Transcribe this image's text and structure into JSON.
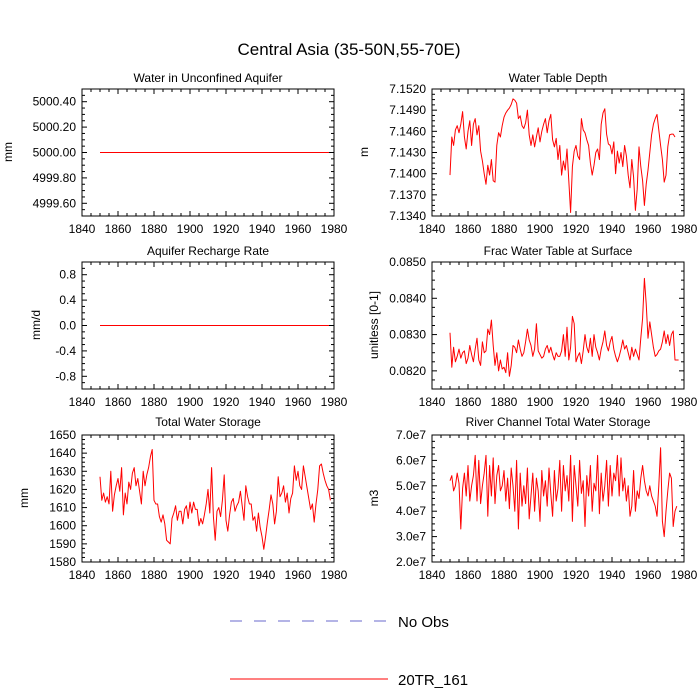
{
  "figure": {
    "title": "Central Asia (35-50N,55-70E)"
  },
  "legend": {
    "items": [
      {
        "label": "No Obs",
        "color": "#6a6acd",
        "style": "dashed"
      },
      {
        "label": "20TR_161",
        "color": "#ff0000",
        "style": "solid"
      }
    ]
  },
  "chart_data": [
    {
      "type": "line",
      "title": "Water in Unconfined Aquifer",
      "ylabel": "mm",
      "xlim": [
        1840,
        1980
      ],
      "xticks": [
        1840,
        1860,
        1880,
        1900,
        1920,
        1940,
        1960,
        1980
      ],
      "ylim": [
        4999.5,
        5000.5
      ],
      "yticks": [
        4999.6,
        4999.8,
        5000.0,
        5000.2,
        5000.4
      ],
      "ytick_labels": [
        "4999.60",
        "4999.80",
        "5000.00",
        "5000.20",
        "5000.40"
      ],
      "series": [
        {
          "name": "20TR_161",
          "color": "#ff0000",
          "x_start": 1850,
          "x_step": 1,
          "values": [
            5000.0,
            5000.0,
            5000.0,
            5000.0,
            5000.0,
            5000.0,
            5000.0,
            5000.0,
            5000.0,
            5000.0,
            5000.0,
            5000.0,
            5000.0,
            5000.0,
            5000.0,
            5000.0,
            5000.0,
            5000.0,
            5000.0,
            5000.0,
            5000.0,
            5000.0,
            5000.0,
            5000.0,
            5000.0,
            5000.0,
            5000.0,
            5000.0,
            5000.0,
            5000.0,
            5000.0,
            5000.0,
            5000.0,
            5000.0,
            5000.0,
            5000.0,
            5000.0,
            5000.0,
            5000.0,
            5000.0,
            5000.0,
            5000.0,
            5000.0,
            5000.0,
            5000.0,
            5000.0,
            5000.0,
            5000.0,
            5000.0,
            5000.0,
            5000.0,
            5000.0,
            5000.0,
            5000.0,
            5000.0,
            5000.0,
            5000.0,
            5000.0,
            5000.0,
            5000.0,
            5000.0,
            5000.0,
            5000.0,
            5000.0,
            5000.0,
            5000.0,
            5000.0,
            5000.0,
            5000.0,
            5000.0,
            5000.0,
            5000.0,
            5000.0,
            5000.0,
            5000.0,
            5000.0,
            5000.0,
            5000.0,
            5000.0,
            5000.0,
            5000.0,
            5000.0,
            5000.0,
            5000.0,
            5000.0,
            5000.0,
            5000.0,
            5000.0,
            5000.0,
            5000.0,
            5000.0,
            5000.0,
            5000.0,
            5000.0,
            5000.0,
            5000.0,
            5000.0,
            5000.0,
            5000.0,
            5000.0,
            5000.0,
            5000.0,
            5000.0,
            5000.0,
            5000.0,
            5000.0,
            5000.0,
            5000.0,
            5000.0,
            5000.0,
            5000.0,
            5000.0,
            5000.0,
            5000.0,
            5000.0,
            5000.0,
            5000.0,
            5000.0,
            5000.0,
            5000.0,
            5000.0,
            5000.0,
            5000.0,
            5000.0,
            5000.0,
            5000.0,
            5000.0,
            5000.0,
            5000.0,
            5000.0
          ]
        }
      ]
    },
    {
      "type": "line",
      "title": "Water Table Depth",
      "ylabel": "m",
      "xlim": [
        1840,
        1980
      ],
      "xticks": [
        1840,
        1860,
        1880,
        1900,
        1920,
        1940,
        1960,
        1980
      ],
      "ylim": [
        7.134,
        7.152
      ],
      "yticks": [
        7.134,
        7.137,
        7.14,
        7.143,
        7.146,
        7.149,
        7.152
      ],
      "ytick_labels": [
        "7.1340",
        "7.1370",
        "7.1400",
        "7.1430",
        "7.1460",
        "7.1490",
        "7.1520"
      ],
      "series": [
        {
          "name": "20TR_161",
          "color": "#ff0000",
          "x_start": 1850,
          "x_step": 1,
          "values": [
            7.1398,
            7.1452,
            7.144,
            7.1462,
            7.1468,
            7.1458,
            7.147,
            7.1488,
            7.1452,
            7.1435,
            7.146,
            7.1475,
            7.144,
            7.147,
            7.1478,
            7.1455,
            7.1468,
            7.1432,
            7.1418,
            7.14,
            7.1385,
            7.1412,
            7.1398,
            7.142,
            7.139,
            7.1388,
            7.144,
            7.1458,
            7.1452,
            7.1468,
            7.148,
            7.1486,
            7.149,
            7.1493,
            7.1498,
            7.1506,
            7.1504,
            7.15,
            7.1478,
            7.1482,
            7.1468,
            7.1464,
            7.1472,
            7.149,
            7.1455,
            7.144,
            7.1455,
            7.1438,
            7.1452,
            7.1465,
            7.1445,
            7.146,
            7.147,
            7.1478,
            7.1458,
            7.1475,
            7.1484,
            7.1448,
            7.1438,
            7.145,
            7.142,
            7.144,
            7.1398,
            7.1418,
            7.1405,
            7.1435,
            7.139,
            7.1345,
            7.141,
            7.1432,
            7.144,
            7.1425,
            7.142,
            7.1478,
            7.1462,
            7.1458,
            7.1448,
            7.144,
            7.1415,
            7.1398,
            7.1412,
            7.143,
            7.1435,
            7.142,
            7.147,
            7.1486,
            7.1492,
            7.1456,
            7.1442,
            7.144,
            7.1428,
            7.1445,
            7.14,
            7.1432,
            7.1415,
            7.143,
            7.141,
            7.144,
            7.1425,
            7.1398,
            7.138,
            7.142,
            7.1395,
            7.1348,
            7.1378,
            7.1438,
            7.141,
            7.139,
            7.1355,
            7.1385,
            7.1405,
            7.143,
            7.1455,
            7.147,
            7.1478,
            7.1484,
            7.1462,
            7.144,
            7.142,
            7.1388,
            7.1398,
            7.1438,
            7.1455,
            7.1456,
            7.1456,
            7.1452
          ]
        }
      ]
    },
    {
      "type": "line",
      "title": "Aquifer Recharge Rate",
      "ylabel": "mm/d",
      "xlim": [
        1840,
        1980
      ],
      "xticks": [
        1840,
        1860,
        1880,
        1900,
        1920,
        1940,
        1960,
        1980
      ],
      "ylim": [
        -1.0,
        1.0
      ],
      "yticks": [
        -0.8,
        -0.4,
        0.0,
        0.4,
        0.8
      ],
      "ytick_labels": [
        "-0.8",
        "-0.4",
        "0.0",
        "0.4",
        "0.8"
      ],
      "series": [
        {
          "name": "20TR_161",
          "color": "#ff0000",
          "x_start": 1850,
          "x_step": 1,
          "values": [
            0,
            0,
            0,
            0,
            0,
            0,
            0,
            0,
            0,
            0,
            0,
            0,
            0,
            0,
            0,
            0,
            0,
            0,
            0,
            0,
            0,
            0,
            0,
            0,
            0,
            0,
            0,
            0,
            0,
            0,
            0,
            0,
            0,
            0,
            0,
            0,
            0,
            0,
            0,
            0,
            0,
            0,
            0,
            0,
            0,
            0,
            0,
            0,
            0,
            0,
            0,
            0,
            0,
            0,
            0,
            0,
            0,
            0,
            0,
            0,
            0,
            0,
            0,
            0,
            0,
            0,
            0,
            0,
            0,
            0,
            0,
            0,
            0,
            0,
            0,
            0,
            0,
            0,
            0,
            0,
            0,
            0,
            0,
            0,
            0,
            0,
            0,
            0,
            0,
            0,
            0,
            0,
            0,
            0,
            0,
            0,
            0,
            0,
            0,
            0,
            0,
            0,
            0,
            0,
            0,
            0,
            0,
            0,
            0,
            0,
            0,
            0,
            0,
            0,
            0,
            0,
            0,
            0,
            0,
            0,
            0,
            0,
            0,
            0,
            0,
            0,
            0,
            0,
            0
          ]
        }
      ]
    },
    {
      "type": "line",
      "title": "Frac Water Table at Surface",
      "ylabel": "unitless [0-1]",
      "xlim": [
        1840,
        1980
      ],
      "xticks": [
        1840,
        1860,
        1880,
        1900,
        1920,
        1940,
        1960,
        1980
      ],
      "ylim": [
        0.0815,
        0.085
      ],
      "yticks": [
        0.082,
        0.083,
        0.084,
        0.085
      ],
      "ytick_labels": [
        "0.0820",
        "0.0830",
        "0.0840",
        "0.0850"
      ],
      "series": [
        {
          "name": "20TR_161",
          "color": "#ff0000",
          "x_start": 1850,
          "x_step": 1,
          "values": [
            0.08305,
            0.0821,
            0.08265,
            0.08225,
            0.0824,
            0.0826,
            0.08235,
            0.0825,
            0.08255,
            0.0822,
            0.08235,
            0.0827,
            0.08245,
            0.08225,
            0.0826,
            0.0829,
            0.0823,
            0.08215,
            0.0828,
            0.0825,
            0.08255,
            0.08315,
            0.083,
            0.0834,
            0.0827,
            0.08215,
            0.0825,
            0.082,
            0.0823,
            0.08205,
            0.0821,
            0.08195,
            0.0825,
            0.08185,
            0.08215,
            0.0827,
            0.08265,
            0.0825,
            0.08285,
            0.0826,
            0.0824,
            0.0825,
            0.0828,
            0.08315,
            0.08285,
            0.0827,
            0.0824,
            0.0826,
            0.0833,
            0.08255,
            0.08245,
            0.08235,
            0.0824,
            0.0826,
            0.0827,
            0.0825,
            0.08265,
            0.08245,
            0.0823,
            0.0825,
            0.0824,
            0.0824,
            0.08255,
            0.083,
            0.0824,
            0.0832,
            0.0823,
            0.08265,
            0.0835,
            0.0833,
            0.08225,
            0.0824,
            0.0825,
            0.0822,
            0.08255,
            0.083,
            0.08265,
            0.0825,
            0.0829,
            0.0824,
            0.083,
            0.08265,
            0.0825,
            0.0823,
            0.0826,
            0.0828,
            0.0831,
            0.0827,
            0.08255,
            0.0828,
            0.08295,
            0.0826,
            0.0824,
            0.08225,
            0.0824,
            0.0826,
            0.08285,
            0.0826,
            0.0827,
            0.0825,
            0.0823,
            0.08265,
            0.0824,
            0.0826,
            0.08245,
            0.0823,
            0.0829,
            0.08345,
            0.08455,
            0.08385,
            0.0829,
            0.08335,
            0.083,
            0.08265,
            0.0824,
            0.08245,
            0.08255,
            0.0826,
            0.0828,
            0.0831,
            0.08275,
            0.083,
            0.0827,
            0.083,
            0.0831,
            0.0823,
            0.0823,
            0.0823
          ]
        }
      ]
    },
    {
      "type": "line",
      "title": "Total Water Storage",
      "ylabel": "mm",
      "xlim": [
        1840,
        1980
      ],
      "xticks": [
        1840,
        1860,
        1880,
        1900,
        1920,
        1940,
        1960,
        1980
      ],
      "ylim": [
        1580,
        1650
      ],
      "yticks": [
        1580,
        1590,
        1600,
        1610,
        1620,
        1630,
        1640,
        1650
      ],
      "ytick_labels": [
        "1580",
        "1590",
        "1600",
        "1610",
        "1620",
        "1630",
        "1640",
        "1650"
      ],
      "series": [
        {
          "name": "20TR_161",
          "color": "#ff0000",
          "x_start": 1850,
          "x_step": 1,
          "values": [
            1627,
            1614,
            1618,
            1613,
            1616,
            1612,
            1630,
            1608,
            1617,
            1622,
            1626,
            1619,
            1632,
            1606,
            1618,
            1612,
            1624,
            1620,
            1629,
            1632,
            1622,
            1626,
            1619,
            1612,
            1630,
            1622,
            1628,
            1632,
            1638,
            1642,
            1614,
            1612,
            1612,
            1605,
            1602,
            1606,
            1601,
            1592,
            1591,
            1590,
            1604,
            1607,
            1611,
            1603,
            1608,
            1608,
            1601,
            1609,
            1611,
            1604,
            1613,
            1607,
            1613,
            1609,
            1609,
            1600,
            1604,
            1601,
            1606,
            1612,
            1620,
            1607,
            1632,
            1605,
            1592,
            1608,
            1610,
            1605,
            1614,
            1628,
            1603,
            1597,
            1606,
            1613,
            1615,
            1608,
            1611,
            1613,
            1619,
            1611,
            1603,
            1622,
            1616,
            1612,
            1612,
            1603,
            1605,
            1597,
            1607,
            1599,
            1594,
            1587,
            1594,
            1602,
            1609,
            1617,
            1612,
            1601,
            1608,
            1627,
            1616,
            1618,
            1622,
            1613,
            1618,
            1607,
            1615,
            1618,
            1633,
            1625,
            1630,
            1622,
            1620,
            1633,
            1627,
            1621,
            1615,
            1609,
            1612,
            1602,
            1612,
            1620,
            1633,
            1634,
            1629,
            1625,
            1622,
            1620,
            1614
          ]
        }
      ]
    },
    {
      "type": "line",
      "title": "River Channel Total Water Storage",
      "ylabel": "m3",
      "xlim": [
        1840,
        1980
      ],
      "xticks": [
        1840,
        1860,
        1880,
        1900,
        1920,
        1940,
        1960,
        1980
      ],
      "ylim": [
        20000000,
        70000000
      ],
      "yticks": [
        20000000,
        30000000,
        40000000,
        50000000,
        60000000,
        70000000
      ],
      "ytick_labels": [
        "2.0e7",
        "3.0e7",
        "4.0e7",
        "5.0e7",
        "6.0e7",
        "7.0e7"
      ],
      "series": [
        {
          "name": "20TR_161",
          "color": "#ff0000",
          "x_start": 1850,
          "x_step": 1,
          "values": [
            52000000,
            54000000,
            48000000,
            50000000,
            55000000,
            51000000,
            33000000,
            49000000,
            55000000,
            46000000,
            58000000,
            44000000,
            50000000,
            54000000,
            62000000,
            44000000,
            60000000,
            43000000,
            50000000,
            55000000,
            62000000,
            38000000,
            58000000,
            46000000,
            61000000,
            43000000,
            54000000,
            58000000,
            48000000,
            50000000,
            56000000,
            44000000,
            53000000,
            41000000,
            57000000,
            50000000,
            40000000,
            60000000,
            33000000,
            55000000,
            42000000,
            50000000,
            43000000,
            57000000,
            37000000,
            46000000,
            55000000,
            40000000,
            53000000,
            48000000,
            36000000,
            56000000,
            46000000,
            52000000,
            42000000,
            57000000,
            47000000,
            38000000,
            56000000,
            44000000,
            49000000,
            60000000,
            40000000,
            58000000,
            48000000,
            54000000,
            44000000,
            62000000,
            36000000,
            58000000,
            50000000,
            42000000,
            60000000,
            47000000,
            52000000,
            34000000,
            54000000,
            46000000,
            58000000,
            40000000,
            51000000,
            48000000,
            62000000,
            39000000,
            55000000,
            44000000,
            50000000,
            60000000,
            42000000,
            58000000,
            46000000,
            55000000,
            52000000,
            62000000,
            46000000,
            61000000,
            48000000,
            53000000,
            44000000,
            50000000,
            38000000,
            42000000,
            56000000,
            40000000,
            48000000,
            45000000,
            53000000,
            58000000,
            52000000,
            48000000,
            46000000,
            50000000,
            46000000,
            44000000,
            42000000,
            38000000,
            50000000,
            65000000,
            36000000,
            30000000,
            40000000,
            48000000,
            55000000,
            53000000,
            34000000,
            40000000,
            42000000
          ]
        }
      ]
    }
  ]
}
